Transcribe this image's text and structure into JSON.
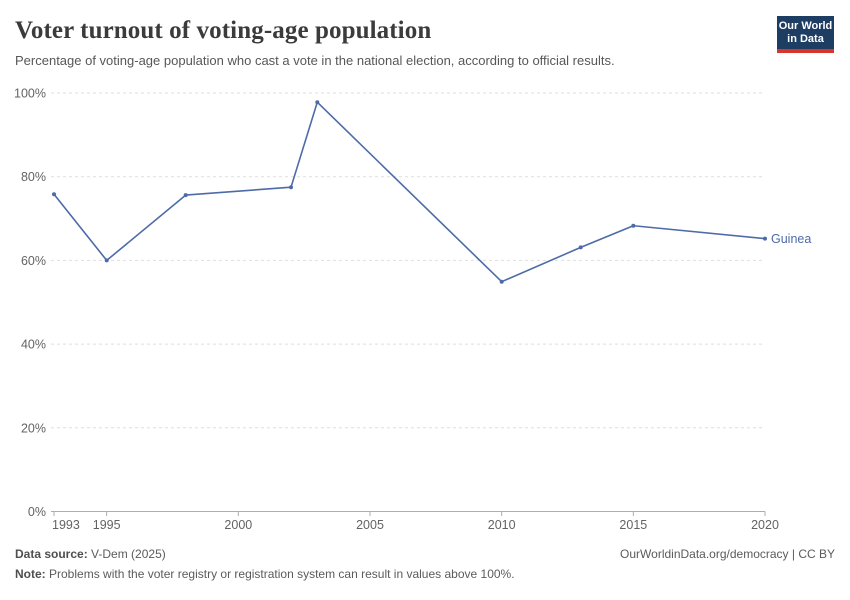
{
  "header": {
    "title": "Voter turnout of voting-age population",
    "subtitle": "Percentage of voting-age population who cast a vote in the national election, according to official results.",
    "logo_line1": "Our World",
    "logo_line2": "in Data"
  },
  "chart_data": {
    "type": "line",
    "title": "Voter turnout of voting-age population",
    "entity": "Guinea",
    "series": [
      {
        "name": "Guinea",
        "color": "#4d6ba8",
        "points": [
          {
            "year": 1993,
            "value": 75.8
          },
          {
            "year": 1995,
            "value": 60.0
          },
          {
            "year": 1998,
            "value": 75.6
          },
          {
            "year": 2002,
            "value": 77.5
          },
          {
            "year": 2003,
            "value": 97.8
          },
          {
            "year": 2010,
            "value": 54.9
          },
          {
            "year": 2013,
            "value": 63.1
          },
          {
            "year": 2015,
            "value": 68.3
          },
          {
            "year": 2020,
            "value": 65.2
          }
        ]
      }
    ],
    "x_axis": {
      "ticks": [
        1993,
        1995,
        2000,
        2005,
        2010,
        2015,
        2020
      ],
      "range": [
        1993,
        2020
      ]
    },
    "y_axis": {
      "ticks": [
        0,
        20,
        40,
        60,
        80,
        100
      ],
      "tick_suffix": "%",
      "range": [
        0,
        100
      ],
      "gridlines": "dashed-horizontal"
    },
    "legend": {
      "position": "end-of-line",
      "label": "Guinea"
    }
  },
  "footer": {
    "datasource_label": "Data source:",
    "datasource_value": " V-Dem (2025)",
    "attribution": "OurWorldinData.org/democracy | CC BY",
    "note_label": "Note:",
    "note_value": " Problems with the voter registry or registration system can result in values above 100%."
  },
  "colors": {
    "line": "#4d6ba8",
    "logo_navy": "#1d3d63",
    "logo_red": "#d7362f",
    "gridline": "#dedede",
    "axis": "#adadad",
    "axis_text": "#636363"
  }
}
